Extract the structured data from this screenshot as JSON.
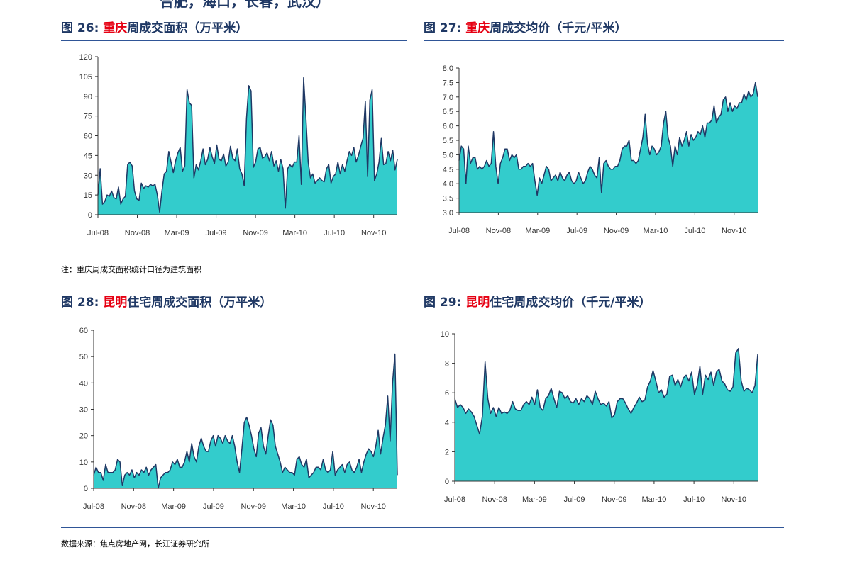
{
  "page": {
    "heading": "合肥，海口，长春，武汉）"
  },
  "accent": {
    "title": "#1f3864",
    "city": "#e60012",
    "fill": "#33cccc",
    "stroke": "#1f3864"
  },
  "figures": [
    {
      "label": "图 26:",
      "city": "重庆",
      "rest": "周成交面积（万平米）"
    },
    {
      "label": "图 27:",
      "city": "重庆",
      "rest": "周成交均价（千元/平米）"
    },
    {
      "label": "图 28:",
      "city": "昆明",
      "rest": "住宅周成交面积（万平米）"
    },
    {
      "label": "图 29:",
      "city": "昆明",
      "rest": "住宅周成交均价（千元/平米）"
    }
  ],
  "notes": {
    "note1": "注：重庆周成交面积统计口径为建筑面积",
    "source": "数据来源：焦点房地产网，长江证券研究所"
  },
  "chart_data": [
    {
      "type": "area",
      "title": "重庆周成交面积（万平米）",
      "ylim": [
        0,
        120
      ],
      "yticks": [
        "0",
        "15",
        "30",
        "45",
        "60",
        "75",
        "90",
        "105",
        "120"
      ],
      "xticks": [
        "Jul-08",
        "Nov-08",
        "Mar-09",
        "Jul-09",
        "Nov-09",
        "Mar-10",
        "Jul-10",
        "Nov-10"
      ],
      "values": [
        15,
        35,
        8,
        10,
        15,
        14,
        18,
        13,
        12,
        21,
        8,
        12,
        14,
        38,
        40,
        37,
        18,
        12,
        11,
        24,
        20,
        22,
        21,
        23,
        22,
        23,
        15,
        2,
        18,
        31,
        33,
        48,
        40,
        32,
        41,
        47,
        51,
        33,
        37,
        95,
        85,
        83,
        28,
        38,
        34,
        41,
        50,
        38,
        42,
        51,
        44,
        39,
        53,
        42,
        41,
        46,
        37,
        40,
        52,
        43,
        41,
        50,
        35,
        31,
        22,
        73,
        98,
        94,
        36,
        40,
        50,
        51,
        43,
        44,
        47,
        41,
        48,
        37,
        41,
        33,
        42,
        35,
        5,
        35,
        38,
        36,
        40,
        40,
        60,
        23,
        104,
        74,
        40,
        28,
        31,
        24,
        26,
        28,
        26,
        25,
        35,
        38,
        24,
        29,
        31,
        40,
        31,
        38,
        33,
        41,
        48,
        45,
        51,
        40,
        45,
        52,
        58,
        86,
        29,
        87,
        95,
        26,
        31,
        40,
        58,
        38,
        39,
        48,
        41,
        49,
        34,
        42
      ],
      "grid": false
    },
    {
      "type": "area",
      "title": "重庆周成交均价（千元/平米）",
      "ylim": [
        3.0,
        8.0
      ],
      "yticks": [
        "3.0",
        "3.5",
        "4.0",
        "4.5",
        "5.0",
        "5.5",
        "6.0",
        "6.5",
        "7.0",
        "7.5",
        "8.0"
      ],
      "xticks": [
        "Jul-08",
        "Nov-08",
        "Mar-09",
        "Jul-09",
        "Nov-09",
        "Mar-10",
        "Jul-10",
        "Nov-10"
      ],
      "values": [
        4.8,
        5.3,
        5.2,
        4.0,
        5.3,
        4.7,
        4.9,
        4.9,
        4.5,
        4.6,
        4.5,
        4.6,
        4.8,
        4.6,
        4.7,
        5.8,
        4.6,
        4.0,
        4.7,
        4.9,
        5.2,
        5.2,
        4.8,
        5.0,
        4.9,
        5.0,
        4.5,
        4.5,
        4.6,
        4.6,
        4.7,
        4.6,
        4.7,
        4.1,
        3.6,
        4.2,
        4.0,
        4.3,
        4.6,
        4.5,
        4.1,
        4.2,
        4.3,
        4.1,
        4.4,
        4.2,
        4.1,
        4.3,
        4.4,
        4.1,
        4.0,
        4.1,
        4.4,
        4.2,
        4.0,
        4.1,
        4.4,
        4.6,
        4.5,
        4.3,
        4.2,
        4.9,
        3.7,
        4.7,
        4.8,
        4.6,
        4.5,
        4.5,
        4.6,
        4.6,
        4.8,
        5.2,
        5.3,
        5.3,
        5.5,
        4.8,
        4.8,
        4.7,
        4.8,
        5.2,
        5.6,
        6.4,
        5.4,
        5.0,
        5.3,
        5.2,
        5.0,
        5.1,
        5.3,
        6.1,
        6.5,
        5.6,
        5.3,
        4.6,
        5.3,
        5.0,
        5.6,
        5.3,
        5.5,
        5.8,
        5.3,
        5.7,
        5.5,
        5.6,
        5.8,
        5.7,
        6.0,
        5.6,
        6.1,
        6.1,
        6.2,
        6.7,
        6.1,
        6.3,
        6.4,
        6.9,
        7.0,
        6.5,
        6.8,
        6.5,
        6.7,
        6.6,
        6.8,
        6.8,
        7.1,
        6.9,
        7.2,
        7.0,
        7.1,
        7.5,
        7.0
      ],
      "grid": false
    },
    {
      "type": "area",
      "title": "昆明住宅周成交面积（万平米）",
      "ylim": [
        0,
        60
      ],
      "yticks": [
        "0",
        "10",
        "20",
        "30",
        "40",
        "50",
        "60"
      ],
      "xticks": [
        "Jul-08",
        "Nov-08",
        "Mar-09",
        "Jul-09",
        "Nov-09",
        "Mar-10",
        "Jul-10",
        "Nov-10"
      ],
      "values": [
        5,
        8,
        6,
        6,
        3,
        9,
        6,
        6,
        6,
        7,
        11,
        10,
        1,
        5,
        6,
        5,
        7,
        4,
        6,
        5,
        7,
        6,
        8,
        5,
        7,
        8,
        9,
        0,
        4,
        5,
        6,
        6,
        7,
        10,
        9,
        11,
        8,
        8,
        10,
        14,
        10,
        17,
        12,
        10,
        16,
        19,
        16,
        14,
        14,
        18,
        20,
        16,
        20,
        19,
        17,
        20,
        18,
        17,
        20,
        16,
        10,
        6,
        15,
        25,
        27,
        24,
        20,
        15,
        12,
        21,
        23,
        16,
        13,
        20,
        26,
        24,
        16,
        13,
        10,
        6,
        8,
        7,
        6,
        6,
        5,
        11,
        12,
        9,
        8,
        11,
        4,
        5,
        6,
        8,
        8,
        7,
        11,
        7,
        6,
        7,
        14,
        5,
        7,
        8,
        9,
        6,
        9,
        10,
        7,
        6,
        8,
        11,
        6,
        10,
        13,
        15,
        14,
        12,
        16,
        22,
        13,
        19,
        24,
        35,
        18,
        40,
        51,
        5
      ],
      "grid": false
    },
    {
      "type": "area",
      "title": "昆明住宅周成交均价（千元/平米）",
      "ylim": [
        0,
        10
      ],
      "yticks": [
        "0",
        "2",
        "4",
        "6",
        "8",
        "10"
      ],
      "xticks": [
        "Jul-08",
        "Nov-08",
        "Mar-09",
        "Jul-09",
        "Nov-09",
        "Mar-10",
        "Jul-10",
        "Nov-10"
      ],
      "values": [
        5.6,
        5.0,
        5.2,
        5.0,
        4.6,
        4.9,
        4.7,
        4.4,
        3.8,
        3.2,
        4.4,
        8.1,
        5.6,
        4.6,
        5.0,
        4.4,
        5.0,
        4.6,
        4.7,
        4.6,
        4.8,
        5.4,
        4.9,
        4.8,
        4.8,
        5.2,
        5.4,
        5.2,
        5.7,
        5.2,
        6.2,
        5.0,
        4.8,
        5.6,
        5.8,
        6.3,
        5.6,
        5.0,
        6.1,
        6.0,
        5.6,
        5.8,
        5.4,
        5.3,
        5.6,
        5.2,
        5.6,
        5.4,
        5.8,
        5.6,
        5.2,
        6.1,
        5.6,
        5.2,
        5.3,
        5.1,
        5.4,
        4.3,
        4.5,
        5.4,
        5.6,
        5.6,
        5.3,
        4.9,
        4.6,
        5.0,
        5.3,
        5.7,
        5.4,
        5.5,
        6.4,
        6.8,
        7.5,
        6.8,
        6.0,
        6.2,
        5.7,
        5.9,
        7.1,
        7.2,
        6.5,
        6.9,
        6.4,
        7.0,
        7.2,
        6.8,
        7.4,
        5.9,
        6.5,
        7.8,
        5.9,
        7.2,
        6.9,
        7.4,
        6.5,
        7.4,
        7.6,
        6.8,
        6.6,
        6.2,
        6.1,
        6.4,
        8.7,
        9.0,
        6.8,
        6.1,
        6.3,
        6.2,
        6.0,
        6.5,
        8.6
      ],
      "grid": false
    }
  ]
}
